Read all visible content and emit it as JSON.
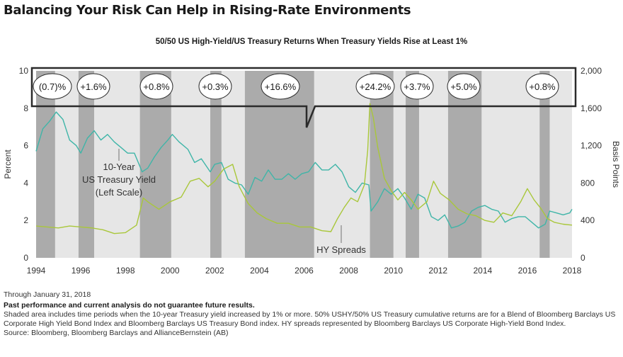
{
  "header": {
    "title": "Balancing Your Risk Can Help in Rising-Rate Environments",
    "subtitle": "50/50 US High-Yield/US Treasury Returns When Treasury Yields Rise at Least 1%"
  },
  "chart_data": {
    "type": "line",
    "title": "50/50 US High-Yield/US Treasury Returns When Treasury Yields Rise at Least 1%",
    "ylabel": "Percent",
    "y2label": "Basis Points",
    "xlim": [
      1994,
      2018
    ],
    "ylim": [
      0,
      10
    ],
    "y2lim": [
      0,
      2000
    ],
    "xticks": [
      "1994",
      "1996",
      "1998",
      "2000",
      "2002",
      "2004",
      "2006",
      "2008",
      "2010",
      "2012",
      "2014",
      "2016",
      "2018"
    ],
    "yticks": [
      "0",
      "2",
      "4",
      "6",
      "8",
      "10"
    ],
    "y2ticks": [
      "0",
      "400",
      "800",
      "1,200",
      "1,600",
      "2,000"
    ],
    "shaded_periods": [
      {
        "start": 1994.0,
        "end": 1994.85,
        "label": "(0.7)%"
      },
      {
        "start": 1995.9,
        "end": 1996.6,
        "label": "+1.6%"
      },
      {
        "start": 1998.65,
        "end": 2000.05,
        "label": "+0.8%"
      },
      {
        "start": 2001.8,
        "end": 2002.3,
        "label": "+0.3%"
      },
      {
        "start": 2003.35,
        "end": 2006.45,
        "label": "+16.6%"
      },
      {
        "start": 2008.95,
        "end": 2010.0,
        "label": "+24.2%"
      },
      {
        "start": 2010.55,
        "end": 2011.15,
        "label": "+3.7%"
      },
      {
        "start": 2012.45,
        "end": 2013.95,
        "label": "+5.0%"
      },
      {
        "start": 2016.55,
        "end": 2017.0,
        "label": "+0.8%"
      }
    ],
    "series": [
      {
        "name": "10-Year US Treasury Yield (Left Scale)",
        "axis": "left",
        "color": "#3fb5a8",
        "x": [
          1994.0,
          1994.3,
          1994.6,
          1994.9,
          1995.2,
          1995.5,
          1995.8,
          1996.0,
          1996.3,
          1996.6,
          1996.9,
          1997.2,
          1997.5,
          1997.8,
          1998.1,
          1998.4,
          1998.75,
          1999.0,
          1999.3,
          1999.6,
          1999.9,
          2000.1,
          2000.4,
          2000.8,
          2001.1,
          2001.4,
          2001.8,
          2002.0,
          2002.3,
          2002.6,
          2002.9,
          2003.2,
          2003.5,
          2003.8,
          2004.1,
          2004.4,
          2004.7,
          2005.0,
          2005.3,
          2005.6,
          2005.9,
          2006.2,
          2006.5,
          2006.8,
          2007.1,
          2007.4,
          2007.7,
          2008.0,
          2008.3,
          2008.6,
          2008.9,
          2009.0,
          2009.3,
          2009.6,
          2009.9,
          2010.2,
          2010.5,
          2010.8,
          2011.1,
          2011.4,
          2011.7,
          2012.0,
          2012.3,
          2012.6,
          2012.9,
          2013.2,
          2013.5,
          2013.8,
          2014.1,
          2014.4,
          2014.7,
          2015.0,
          2015.3,
          2015.6,
          2015.9,
          2016.2,
          2016.5,
          2016.8,
          2017.0,
          2017.3,
          2017.6,
          2017.9,
          2018.0
        ],
        "values": [
          5.7,
          6.9,
          7.3,
          7.8,
          7.4,
          6.3,
          6.0,
          5.6,
          6.4,
          6.8,
          6.3,
          6.6,
          6.2,
          5.9,
          5.6,
          5.6,
          4.6,
          4.8,
          5.4,
          5.9,
          6.3,
          6.6,
          6.2,
          5.8,
          5.1,
          5.3,
          4.6,
          5.0,
          5.1,
          4.2,
          4.0,
          3.9,
          3.4,
          4.3,
          4.1,
          4.7,
          4.2,
          4.2,
          4.5,
          4.2,
          4.5,
          4.6,
          5.1,
          4.7,
          4.7,
          5.0,
          4.6,
          3.8,
          3.5,
          4.0,
          3.9,
          2.5,
          3.0,
          3.7,
          3.4,
          3.7,
          3.2,
          2.6,
          3.4,
          3.2,
          2.2,
          2.0,
          2.3,
          1.6,
          1.7,
          1.9,
          2.5,
          2.7,
          2.8,
          2.6,
          2.5,
          1.9,
          2.1,
          2.2,
          2.2,
          1.9,
          1.6,
          1.8,
          2.5,
          2.4,
          2.3,
          2.4,
          2.6
        ]
      },
      {
        "name": "HY Spreads",
        "axis": "right",
        "color": "#a9c73a",
        "x": [
          1994.0,
          1994.5,
          1995.0,
          1995.5,
          1996.0,
          1996.5,
          1997.0,
          1997.5,
          1998.0,
          1998.5,
          1998.8,
          1999.0,
          1999.5,
          2000.0,
          2000.5,
          2000.9,
          2001.3,
          2001.7,
          2002.0,
          2002.4,
          2002.8,
          2003.1,
          2003.5,
          2003.9,
          2004.3,
          2004.8,
          2005.3,
          2005.8,
          2006.3,
          2006.8,
          2007.2,
          2007.5,
          2007.8,
          2008.1,
          2008.4,
          2008.7,
          2008.85,
          2008.95,
          2009.1,
          2009.3,
          2009.6,
          2009.9,
          2010.2,
          2010.5,
          2010.8,
          2011.1,
          2011.5,
          2011.8,
          2012.1,
          2012.5,
          2012.9,
          2013.3,
          2013.7,
          2014.1,
          2014.5,
          2014.9,
          2015.3,
          2015.7,
          2016.0,
          2016.3,
          2016.6,
          2016.9,
          2017.2,
          2017.6,
          2018.0
        ],
        "values": [
          340,
          330,
          320,
          340,
          330,
          320,
          300,
          260,
          270,
          350,
          640,
          600,
          520,
          600,
          650,
          820,
          850,
          760,
          820,
          950,
          1000,
          760,
          580,
          480,
          420,
          370,
          370,
          330,
          330,
          290,
          280,
          420,
          540,
          640,
          600,
          780,
          1150,
          1650,
          1500,
          1180,
          850,
          720,
          620,
          700,
          620,
          520,
          600,
          820,
          690,
          620,
          520,
          470,
          450,
          400,
          380,
          480,
          450,
          600,
          740,
          620,
          530,
          420,
          380,
          360,
          350
        ]
      }
    ],
    "annotations": [
      "10-Year",
      "US Treasury Yield",
      "(Left Scale)",
      "HY Spreads"
    ]
  },
  "notes": {
    "as_of": "Through January 31, 2018",
    "disclaimer": "Past performance and current analysis do not guarantee future results.",
    "description": "Shaded area includes time periods when the 10-year Treasury yield increased by 1% or more. 50% USHY/50% US Treasury cumulative returns are for a Blend of Bloomberg Barclays US Corporate High Yield Bond Index and Bloomberg Barclays US Treasury Bond index. HY spreads represented by Bloomberg Barclays US Corporate High-Yield Bond Index.",
    "source": "Source: Bloomberg, Bloomberg Barclays and AllianceBernstein (AB)"
  }
}
